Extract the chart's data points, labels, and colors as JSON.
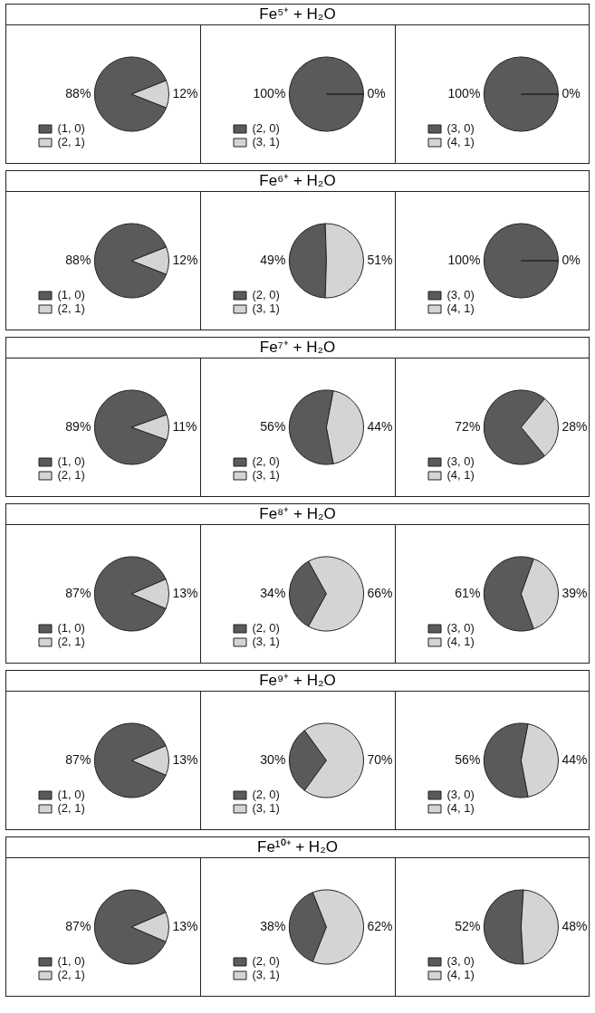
{
  "chart_data": [
    {
      "type": "other",
      "title": "Fe⁵⁺ + H₂O"
    },
    {
      "type": "pie",
      "categories": [
        "(1, 0)",
        "(2, 1)"
      ],
      "values": [
        88,
        12
      ],
      "value_labels": [
        "88%",
        "12%"
      ],
      "colors": [
        "#5a5a5a",
        "#d4d4d4"
      ],
      "legend": "bottom left"
    },
    {
      "type": "pie",
      "categories": [
        "(2, 0)",
        "(3, 1)"
      ],
      "values": [
        100,
        0
      ],
      "value_labels": [
        "100%",
        "0%"
      ],
      "colors": [
        "#5a5a5a",
        "#d4d4d4"
      ],
      "legend": "bottom left"
    },
    {
      "type": "pie",
      "categories": [
        "(3, 0)",
        "(4, 1)"
      ],
      "values": [
        100,
        0
      ],
      "value_labels": [
        "100%",
        "0%"
      ],
      "colors": [
        "#5a5a5a",
        "#d4d4d4"
      ],
      "legend": "bottom left"
    },
    {
      "type": "other",
      "title": "Fe⁶⁺ + H₂O"
    },
    {
      "type": "pie",
      "categories": [
        "(1, 0)",
        "(2, 1)"
      ],
      "values": [
        88,
        12
      ],
      "value_labels": [
        "88%",
        "12%"
      ],
      "colors": [
        "#5a5a5a",
        "#d4d4d4"
      ],
      "legend": "bottom left"
    },
    {
      "type": "pie",
      "categories": [
        "(2, 0)",
        "(3, 1)"
      ],
      "values": [
        49,
        51
      ],
      "value_labels": [
        "49%",
        "51%"
      ],
      "colors": [
        "#5a5a5a",
        "#d4d4d4"
      ],
      "legend": "bottom left"
    },
    {
      "type": "pie",
      "categories": [
        "(3, 0)",
        "(4, 1)"
      ],
      "values": [
        100,
        0
      ],
      "value_labels": [
        "100%",
        "0%"
      ],
      "colors": [
        "#5a5a5a",
        "#d4d4d4"
      ],
      "legend": "bottom left"
    },
    {
      "type": "other",
      "title": "Fe⁷⁺ + H₂O"
    },
    {
      "type": "pie",
      "categories": [
        "(1, 0)",
        "(2, 1)"
      ],
      "values": [
        89,
        11
      ],
      "value_labels": [
        "89%",
        "11%"
      ],
      "colors": [
        "#5a5a5a",
        "#d4d4d4"
      ],
      "legend": "bottom left"
    },
    {
      "type": "pie",
      "categories": [
        "(2, 0)",
        "(3, 1)"
      ],
      "values": [
        56,
        44
      ],
      "value_labels": [
        "56%",
        "44%"
      ],
      "colors": [
        "#5a5a5a",
        "#d4d4d4"
      ],
      "legend": "bottom left"
    },
    {
      "type": "pie",
      "categories": [
        "(3, 0)",
        "(4, 1)"
      ],
      "values": [
        72,
        28
      ],
      "value_labels": [
        "72%",
        "28%"
      ],
      "colors": [
        "#5a5a5a",
        "#d4d4d4"
      ],
      "legend": "bottom left"
    },
    {
      "type": "other",
      "title": "Fe⁸⁺ + H₂O"
    },
    {
      "type": "pie",
      "categories": [
        "(1, 0)",
        "(2, 1)"
      ],
      "values": [
        87,
        13
      ],
      "value_labels": [
        "87%",
        "13%"
      ],
      "colors": [
        "#5a5a5a",
        "#d4d4d4"
      ],
      "legend": "bottom left"
    },
    {
      "type": "pie",
      "categories": [
        "(2, 0)",
        "(3, 1)"
      ],
      "values": [
        34,
        66
      ],
      "value_labels": [
        "34%",
        "66%"
      ],
      "colors": [
        "#5a5a5a",
        "#d4d4d4"
      ],
      "legend": "bottom left"
    },
    {
      "type": "pie",
      "categories": [
        "(3, 0)",
        "(4, 1)"
      ],
      "values": [
        61,
        39
      ],
      "value_labels": [
        "61%",
        "39%"
      ],
      "colors": [
        "#5a5a5a",
        "#d4d4d4"
      ],
      "legend": "bottom left"
    },
    {
      "type": "other",
      "title": "Fe⁹⁺ + H₂O"
    },
    {
      "type": "pie",
      "categories": [
        "(1, 0)",
        "(2, 1)"
      ],
      "values": [
        87,
        13
      ],
      "value_labels": [
        "87%",
        "13%"
      ],
      "colors": [
        "#5a5a5a",
        "#d4d4d4"
      ],
      "legend": "bottom left"
    },
    {
      "type": "pie",
      "categories": [
        "(2, 0)",
        "(3, 1)"
      ],
      "values": [
        30,
        70
      ],
      "value_labels": [
        "30%",
        "70%"
      ],
      "colors": [
        "#5a5a5a",
        "#d4d4d4"
      ],
      "legend": "bottom left"
    },
    {
      "type": "pie",
      "categories": [
        "(3, 0)",
        "(4, 1)"
      ],
      "values": [
        56,
        44
      ],
      "value_labels": [
        "56%",
        "44%"
      ],
      "colors": [
        "#5a5a5a",
        "#d4d4d4"
      ],
      "legend": "bottom left"
    },
    {
      "type": "other",
      "title": "Fe¹⁰⁺ + H₂O"
    },
    {
      "type": "pie",
      "categories": [
        "(1, 0)",
        "(2, 1)"
      ],
      "values": [
        87,
        13
      ],
      "value_labels": [
        "87%",
        "13%"
      ],
      "colors": [
        "#5a5a5a",
        "#d4d4d4"
      ],
      "legend": "bottom left"
    },
    {
      "type": "pie",
      "categories": [
        "(2, 0)",
        "(3, 1)"
      ],
      "values": [
        38,
        62
      ],
      "value_labels": [
        "38%",
        "62%"
      ],
      "colors": [
        "#5a5a5a",
        "#d4d4d4"
      ],
      "legend": "bottom left"
    },
    {
      "type": "pie",
      "categories": [
        "(3, 0)",
        "(4, 1)"
      ],
      "values": [
        52,
        48
      ],
      "value_labels": [
        "52%",
        "48%"
      ],
      "colors": [
        "#5a5a5a",
        "#d4d4d4"
      ],
      "legend": "bottom left"
    }
  ]
}
